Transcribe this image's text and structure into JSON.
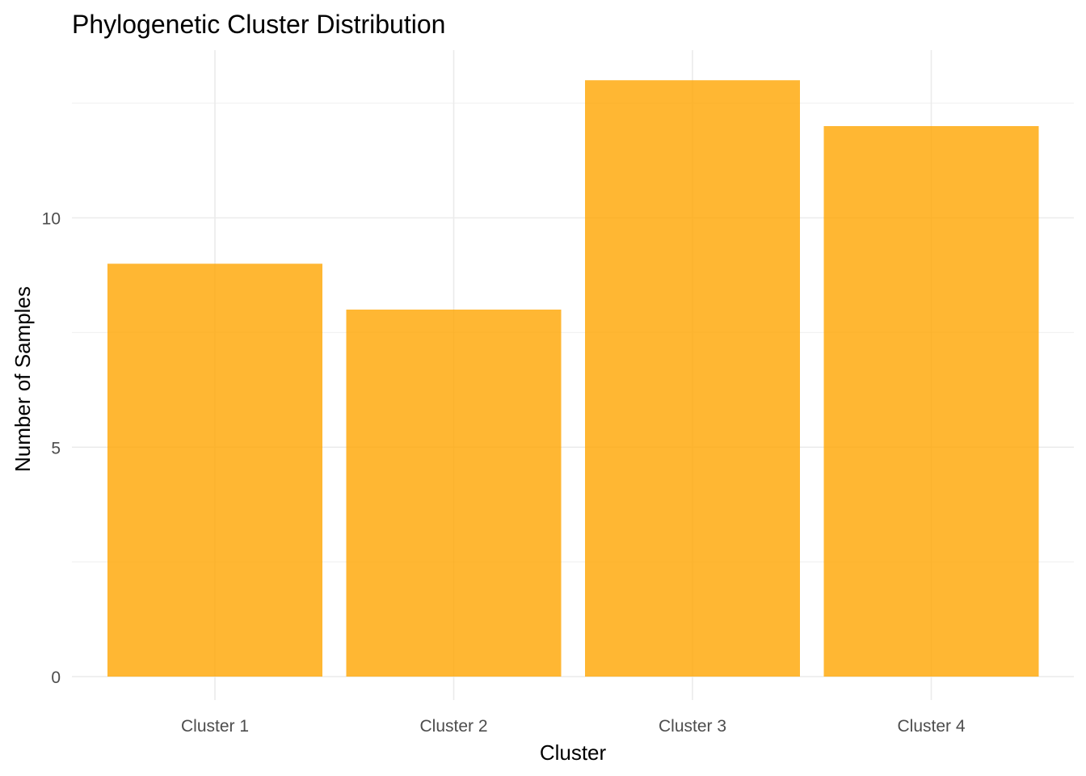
{
  "chart_data": {
    "type": "bar",
    "title": "Phylogenetic Cluster Distribution",
    "xlabel": "Cluster",
    "ylabel": "Number of Samples",
    "categories": [
      "Cluster 1",
      "Cluster 2",
      "Cluster 3",
      "Cluster 4"
    ],
    "values": [
      9,
      8,
      13,
      12
    ],
    "ylim": [
      0,
      14
    ],
    "yticks": [
      0,
      5,
      10
    ],
    "ytick_labels": [
      "0",
      "5",
      "10"
    ],
    "grid": true,
    "legend": "none",
    "bar_color": "#FFA500",
    "bar_opacity": 0.8
  }
}
